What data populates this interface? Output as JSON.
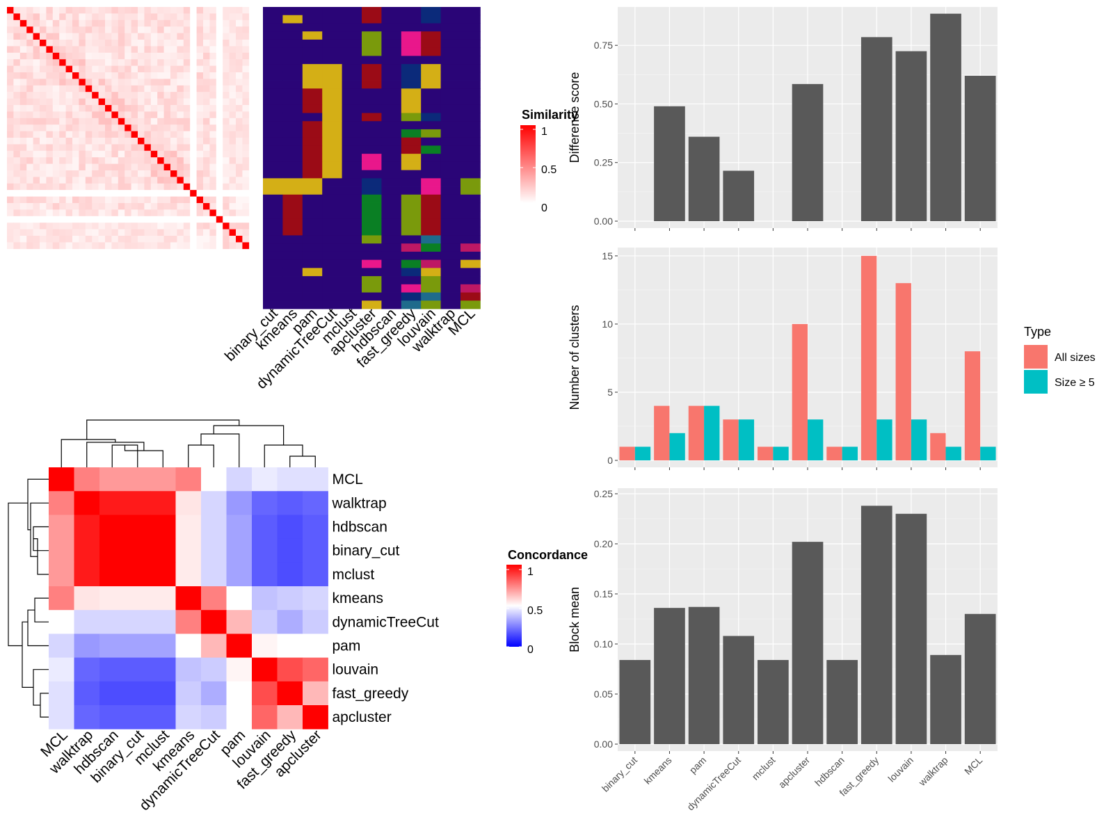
{
  "colors": {
    "heatmap_red": "#ff0000",
    "heatmap_white": "#ffffff",
    "heatmap_blue": "#0000ff",
    "bar_gray": "#595959",
    "panel_bg": "#ebebeb",
    "all_sizes": "#f8766d",
    "size_ge_5": "#00bfc4",
    "class_palette": [
      "#2a0577",
      "#d4af16",
      "#9b0b16",
      "#7a9a0c",
      "#e9178b",
      "#0a7f24",
      "#0b2a7a",
      "#be1864",
      "#1e6b8c"
    ]
  },
  "similarity_heatmap": {
    "legend_title": "Similarity",
    "legend_ticks": [
      "1",
      "0.5",
      "0"
    ],
    "n": 37
  },
  "assignment_heatmap": {
    "methods": [
      "binary_cut",
      "kmeans",
      "pam",
      "dynamicTreeCut",
      "mclust",
      "apcluster",
      "hdbscan",
      "fast_greedy",
      "louvain",
      "walktrap",
      "MCL"
    ],
    "rows": [
      [
        0,
        0,
        0,
        0,
        0,
        2,
        0,
        0,
        6,
        0,
        0
      ],
      [
        0,
        1,
        0,
        0,
        0,
        2,
        0,
        0,
        6,
        0,
        0
      ],
      [
        0,
        0,
        0,
        0,
        0,
        0,
        0,
        0,
        0,
        0,
        0
      ],
      [
        0,
        0,
        1,
        0,
        0,
        3,
        0,
        4,
        2,
        0,
        0
      ],
      [
        0,
        0,
        0,
        0,
        0,
        3,
        0,
        4,
        2,
        0,
        0
      ],
      [
        0,
        0,
        0,
        0,
        0,
        3,
        0,
        4,
        2,
        0,
        0
      ],
      [
        0,
        0,
        0,
        0,
        0,
        0,
        0,
        0,
        0,
        0,
        0
      ],
      [
        0,
        0,
        1,
        1,
        0,
        2,
        0,
        6,
        1,
        0,
        0
      ],
      [
        0,
        0,
        1,
        1,
        0,
        2,
        0,
        6,
        1,
        0,
        0
      ],
      [
        0,
        0,
        1,
        1,
        0,
        2,
        0,
        6,
        1,
        0,
        0
      ],
      [
        0,
        0,
        2,
        1,
        0,
        0,
        0,
        1,
        0,
        0,
        0
      ],
      [
        0,
        0,
        2,
        1,
        0,
        0,
        0,
        1,
        0,
        0,
        0
      ],
      [
        0,
        0,
        2,
        1,
        0,
        0,
        0,
        1,
        0,
        0,
        0
      ],
      [
        0,
        0,
        0,
        1,
        0,
        2,
        0,
        3,
        6,
        0,
        0
      ],
      [
        0,
        0,
        2,
        1,
        0,
        0,
        0,
        0,
        0,
        0,
        0
      ],
      [
        0,
        0,
        2,
        1,
        0,
        0,
        0,
        5,
        3,
        0,
        0
      ],
      [
        0,
        0,
        2,
        1,
        0,
        0,
        0,
        2,
        0,
        0,
        0
      ],
      [
        0,
        0,
        2,
        1,
        0,
        0,
        0,
        2,
        5,
        0,
        0
      ],
      [
        0,
        0,
        2,
        1,
        0,
        4,
        0,
        1,
        0,
        0,
        0
      ],
      [
        0,
        0,
        2,
        1,
        0,
        4,
        0,
        1,
        0,
        0,
        0
      ],
      [
        0,
        0,
        2,
        1,
        0,
        0,
        0,
        0,
        0,
        0,
        0
      ],
      [
        1,
        1,
        1,
        0,
        0,
        6,
        0,
        0,
        4,
        0,
        3
      ],
      [
        1,
        1,
        1,
        0,
        0,
        6,
        0,
        0,
        4,
        0,
        3
      ],
      [
        0,
        2,
        0,
        0,
        0,
        5,
        0,
        3,
        2,
        0,
        0
      ],
      [
        0,
        2,
        0,
        0,
        0,
        5,
        0,
        3,
        2,
        0,
        0
      ],
      [
        0,
        2,
        0,
        0,
        0,
        5,
        0,
        3,
        2,
        0,
        0
      ],
      [
        0,
        2,
        0,
        0,
        0,
        5,
        0,
        3,
        2,
        0,
        0
      ],
      [
        0,
        2,
        0,
        0,
        0,
        5,
        0,
        3,
        2,
        0,
        0
      ],
      [
        0,
        0,
        0,
        0,
        0,
        3,
        0,
        0,
        8,
        0,
        0
      ],
      [
        0,
        0,
        0,
        0,
        0,
        0,
        0,
        7,
        5,
        0,
        7
      ],
      [
        0,
        0,
        0,
        0,
        0,
        0,
        0,
        0,
        0,
        0,
        0
      ],
      [
        0,
        0,
        0,
        0,
        0,
        4,
        0,
        5,
        7,
        0,
        1
      ],
      [
        0,
        0,
        1,
        0,
        0,
        0,
        0,
        6,
        1,
        0,
        0
      ],
      [
        0,
        0,
        0,
        0,
        0,
        3,
        0,
        0,
        3,
        0,
        0
      ],
      [
        0,
        0,
        0,
        0,
        0,
        3,
        0,
        4,
        3,
        0,
        7
      ],
      [
        0,
        0,
        0,
        0,
        0,
        0,
        0,
        6,
        8,
        0,
        2
      ],
      [
        0,
        0,
        0,
        0,
        0,
        1,
        0,
        8,
        3,
        0,
        3
      ]
    ]
  },
  "concordance_heatmap": {
    "legend_title": "Concordance",
    "legend_ticks": [
      "1",
      "0.5",
      "0"
    ],
    "methods": [
      "MCL",
      "walktrap",
      "hdbscan",
      "binary_cut",
      "mclust",
      "kmeans",
      "dynamicTreeCut",
      "pam",
      "louvain",
      "fast_greedy",
      "apcluster"
    ],
    "values": [
      [
        1.0,
        0.75,
        0.7,
        0.7,
        0.7,
        0.75,
        0.5,
        0.42,
        0.46,
        0.44,
        0.44
      ],
      [
        0.75,
        1.0,
        0.95,
        0.95,
        0.95,
        0.55,
        0.42,
        0.3,
        0.2,
        0.18,
        0.2
      ],
      [
        0.7,
        0.95,
        1.0,
        1.0,
        1.0,
        0.54,
        0.42,
        0.32,
        0.18,
        0.15,
        0.18
      ],
      [
        0.7,
        0.95,
        1.0,
        1.0,
        1.0,
        0.54,
        0.42,
        0.32,
        0.18,
        0.15,
        0.18
      ],
      [
        0.7,
        0.95,
        1.0,
        1.0,
        1.0,
        0.54,
        0.42,
        0.32,
        0.18,
        0.15,
        0.18
      ],
      [
        0.75,
        0.55,
        0.54,
        0.54,
        0.54,
        1.0,
        0.75,
        0.5,
        0.38,
        0.4,
        0.42
      ],
      [
        0.5,
        0.42,
        0.42,
        0.42,
        0.42,
        0.75,
        1.0,
        0.64,
        0.4,
        0.34,
        0.4
      ],
      [
        0.42,
        0.3,
        0.32,
        0.32,
        0.32,
        0.5,
        0.64,
        1.0,
        0.52,
        0.5,
        0.5
      ],
      [
        0.46,
        0.2,
        0.18,
        0.18,
        0.18,
        0.38,
        0.4,
        0.52,
        1.0,
        0.85,
        0.8
      ],
      [
        0.44,
        0.18,
        0.15,
        0.15,
        0.15,
        0.4,
        0.34,
        0.5,
        0.85,
        1.0,
        0.64
      ],
      [
        0.44,
        0.2,
        0.18,
        0.18,
        0.18,
        0.42,
        0.4,
        0.5,
        0.8,
        0.64,
        1.0
      ]
    ]
  },
  "chart_data": [
    {
      "type": "bar",
      "ylabel": "Difference score",
      "categories": [
        "binary_cut",
        "kmeans",
        "pam",
        "dynamicTreeCut",
        "mclust",
        "apcluster",
        "hdbscan",
        "fast_greedy",
        "louvain",
        "walktrap",
        "MCL"
      ],
      "values": [
        0.0,
        0.49,
        0.36,
        0.215,
        0.0,
        0.585,
        0.0,
        0.785,
        0.725,
        0.885,
        0.62
      ],
      "ylim": [
        0,
        0.89
      ],
      "yticks": [
        "0.00",
        "0.25",
        "0.50",
        "0.75"
      ],
      "show_x_labels": false
    },
    {
      "type": "bar",
      "ylabel": "Number of clusters",
      "categories": [
        "binary_cut",
        "kmeans",
        "pam",
        "dynamicTreeCut",
        "mclust",
        "apcluster",
        "hdbscan",
        "fast_greedy",
        "louvain",
        "walktrap",
        "MCL"
      ],
      "legend": {
        "title": "Type",
        "position": "right"
      },
      "series": [
        {
          "name": "All sizes",
          "values": [
            1,
            4,
            4,
            3,
            1,
            10,
            1,
            15,
            13,
            2,
            8
          ]
        },
        {
          "name": "Size ≥ 5",
          "values": [
            1,
            2,
            4,
            3,
            1,
            3,
            1,
            3,
            3,
            1,
            1
          ]
        }
      ],
      "ylim": [
        0,
        15.2
      ],
      "yticks": [
        "0",
        "5",
        "10",
        "15"
      ],
      "show_x_labels": false
    },
    {
      "type": "bar",
      "ylabel": "Block mean",
      "categories": [
        "binary_cut",
        "kmeans",
        "pam",
        "dynamicTreeCut",
        "mclust",
        "apcluster",
        "hdbscan",
        "fast_greedy",
        "louvain",
        "walktrap",
        "MCL"
      ],
      "values": [
        0.084,
        0.136,
        0.137,
        0.108,
        0.084,
        0.202,
        0.084,
        0.238,
        0.23,
        0.089,
        0.13
      ],
      "ylim": [
        0,
        0.25
      ],
      "yticks": [
        "0.00",
        "0.05",
        "0.10",
        "0.15",
        "0.20",
        "0.25"
      ],
      "show_x_labels": true
    }
  ]
}
